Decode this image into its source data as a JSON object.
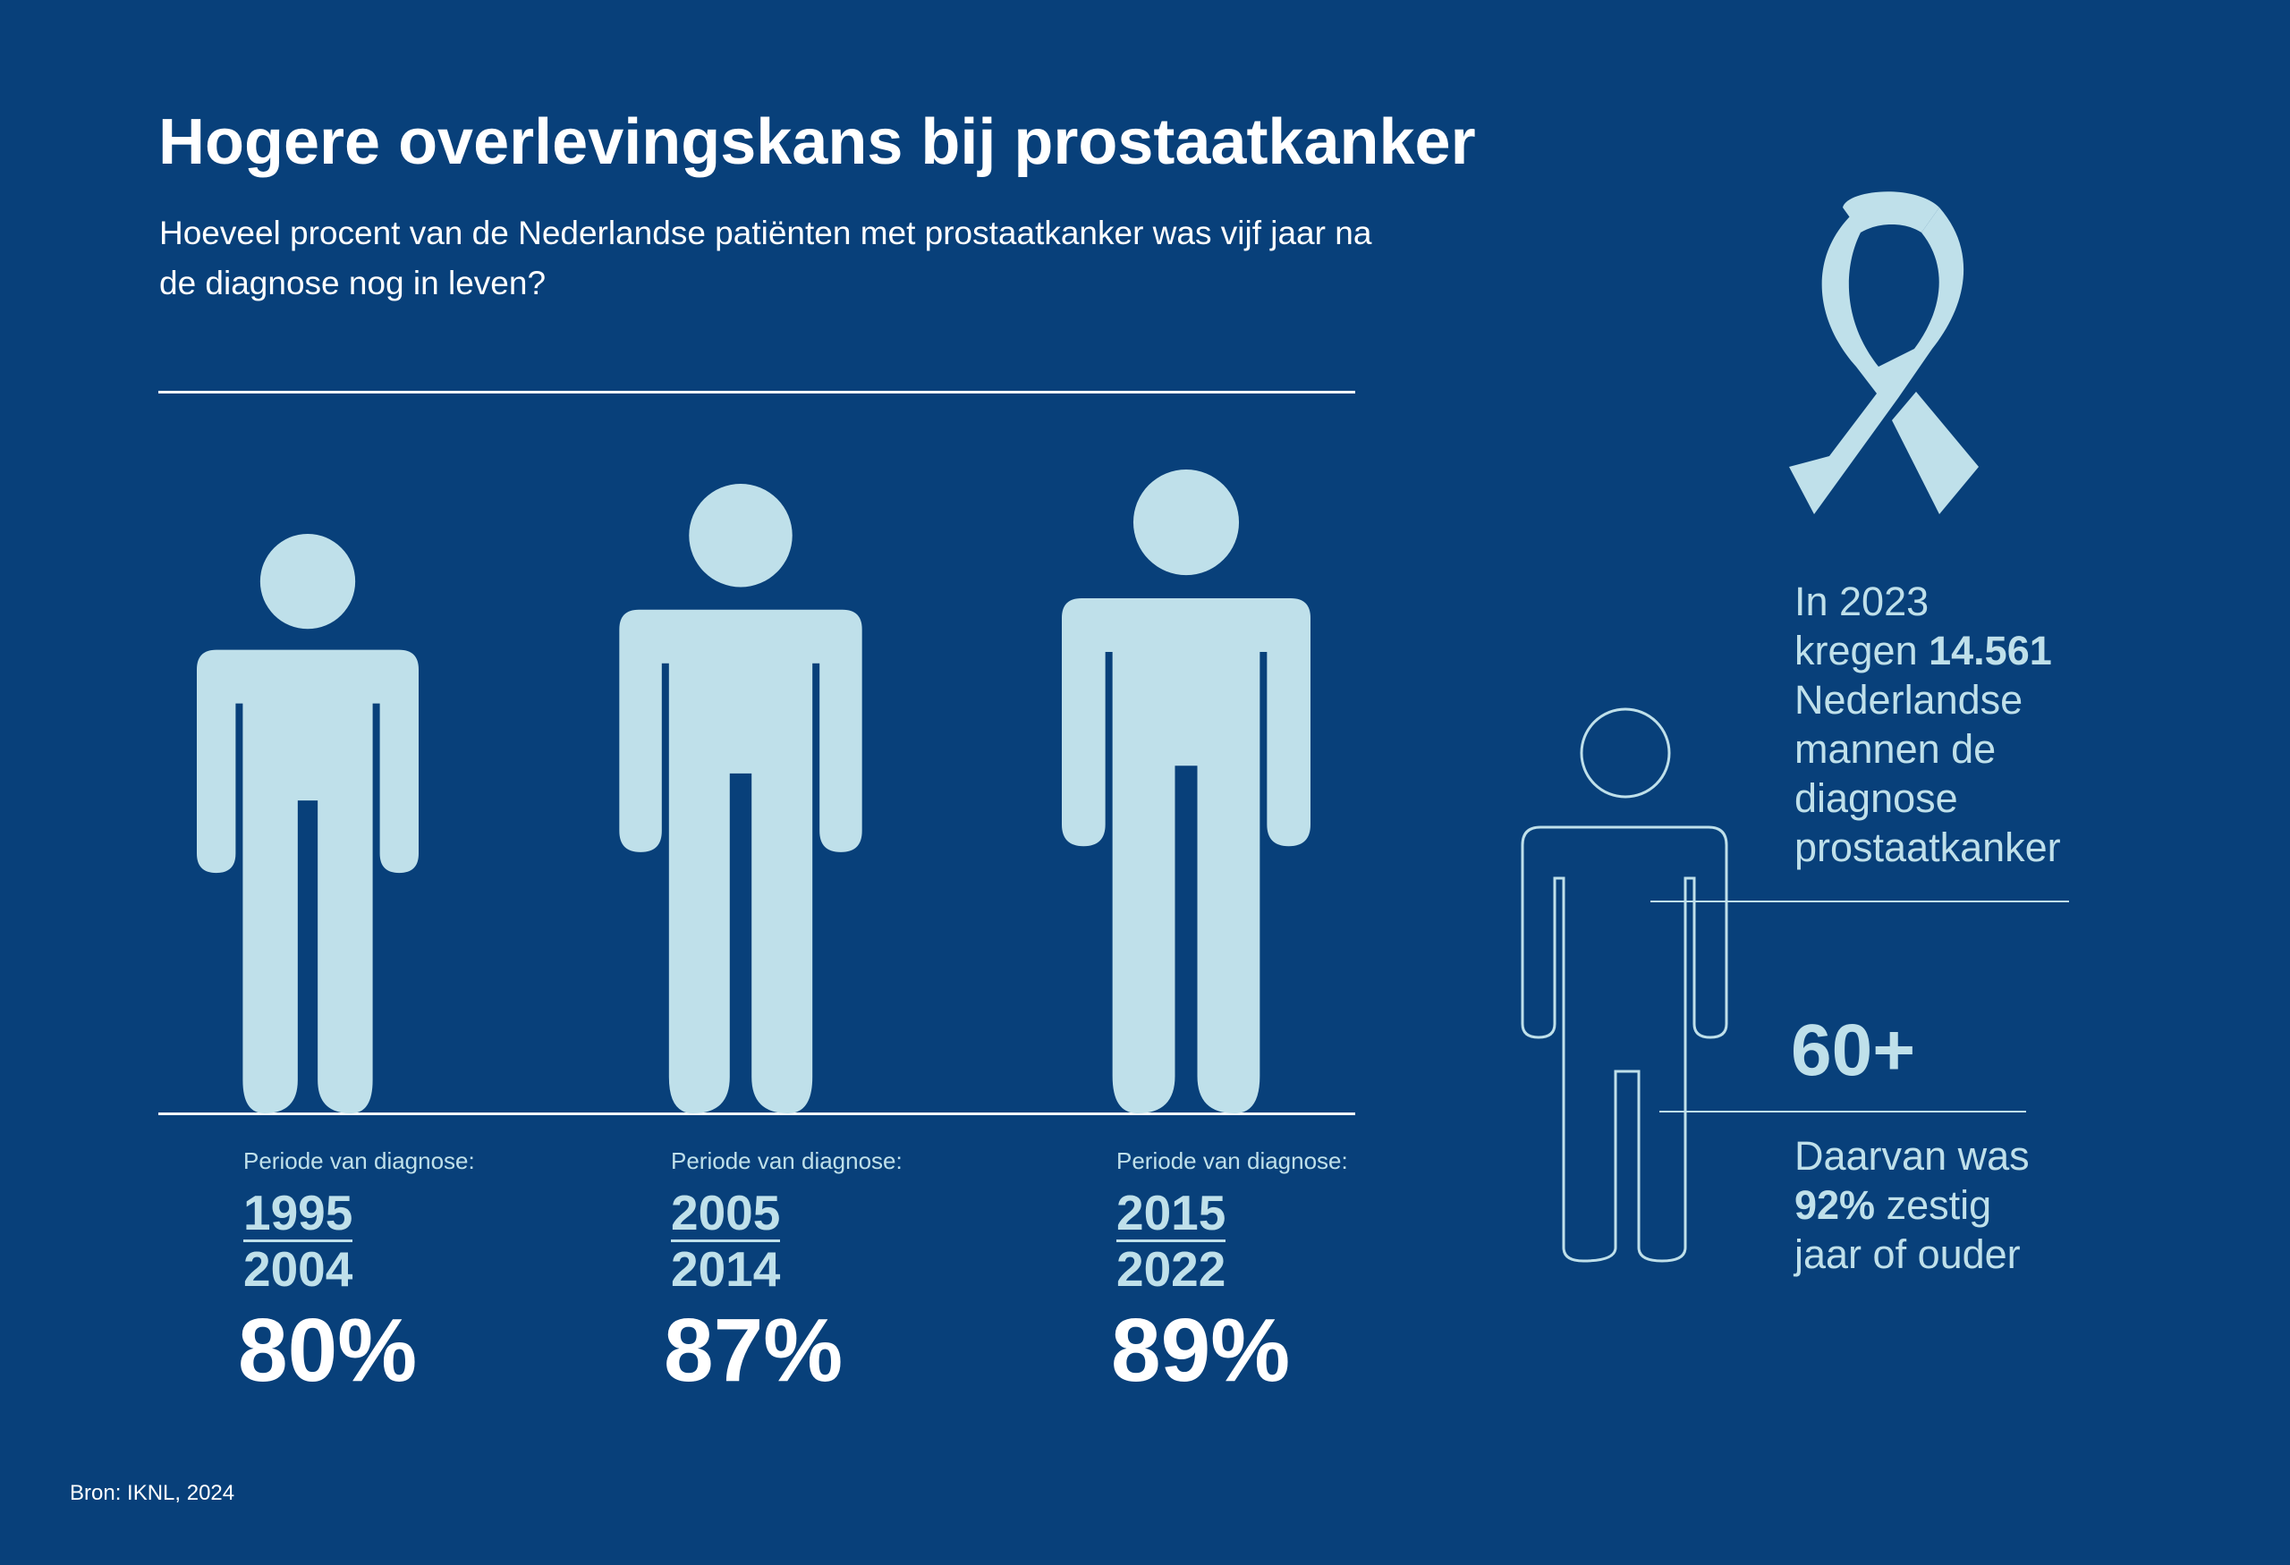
{
  "title": "Hogere overlevingskans bij prostaatkanker",
  "subtitle": "Hoeveel procent van de Nederlandse patiënten met prostaatkanker was vijf jaar na de diagnose nog in leven?",
  "period_label": "Periode van diagnose:",
  "chart_data": {
    "type": "bar",
    "title": "Hogere overlevingskans bij prostaatkanker",
    "categories": [
      "1995 2004",
      "2005 2014",
      "2015 2022"
    ],
    "periods": [
      {
        "start": "1995",
        "end": "2004",
        "label": "80%",
        "value": 80
      },
      {
        "start": "2005",
        "end": "2014",
        "label": "87%",
        "value": 87
      },
      {
        "start": "2015",
        "end": "2022",
        "label": "89%",
        "value": 89
      }
    ],
    "values": [
      80,
      87,
      89
    ]
  },
  "side": {
    "line1": "In 2023",
    "line2_pre": "kregen ",
    "line2_bold": "14.561",
    "line3": "Nederlandse",
    "line4": "mannen de",
    "line5": "diagnose",
    "line6": "prostaatkanker",
    "big": "60+",
    "stat_line1": "Daarvan was",
    "stat_bold": "92%",
    "stat_rest": " zestig",
    "stat_line3": "jaar of ouder"
  },
  "source": "Bron: IKNL, 2024",
  "colors": {
    "background": "#08407a",
    "figure": "#bfe0ea",
    "text": "#ffffff"
  },
  "icons": [
    "awareness-ribbon-icon",
    "person-figure-icon",
    "person-outline-icon"
  ]
}
